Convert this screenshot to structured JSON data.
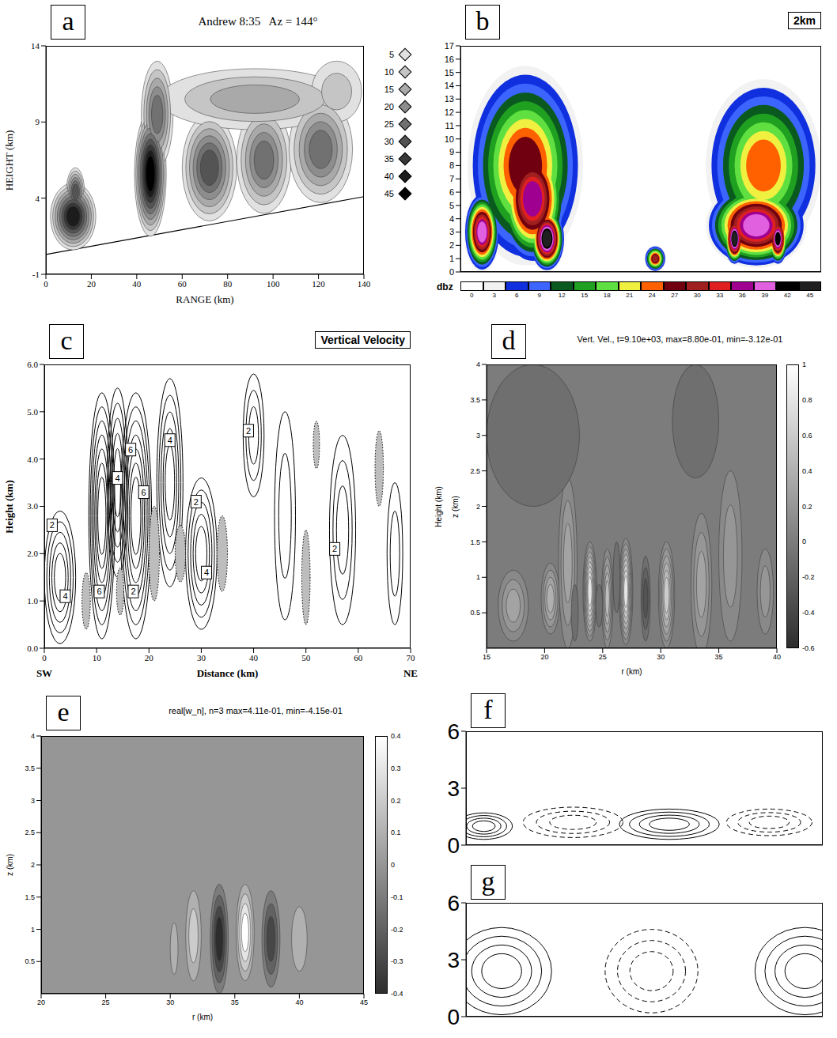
{
  "chart_data": [
    {
      "panel": "a",
      "type": "filled_contour",
      "title": "Andrew 8:35   Az = 144°",
      "x_label": "RANGE (km)",
      "y_label": "HEIGHT (km)",
      "xlim": [
        0,
        140
      ],
      "xticks": [
        0,
        20,
        40,
        60,
        80,
        100,
        120,
        140
      ],
      "ylim": [
        -1,
        14
      ],
      "yticks": [
        -1,
        4,
        9,
        14
      ],
      "background": 0,
      "colorbar": {
        "ticks": [
          5,
          10,
          15,
          20,
          25,
          30,
          35,
          40,
          45
        ]
      },
      "blobs": [
        {
          "x": 12,
          "y": 2.8,
          "rx": 10,
          "ry": 2.2,
          "value": 40
        },
        {
          "x": 13,
          "y": 4.4,
          "rx": 4,
          "ry": 1.6,
          "value": 30
        },
        {
          "x": 46,
          "y": 5.6,
          "rx": 7,
          "ry": 4.1,
          "value": 45
        },
        {
          "x": 49,
          "y": 9.5,
          "rx": 7,
          "ry": 3.5,
          "value": 25
        },
        {
          "x": 72,
          "y": 6,
          "rx": 12,
          "ry": 3.5,
          "value": 30
        },
        {
          "x": 96,
          "y": 6.5,
          "rx": 12,
          "ry": 3.5,
          "value": 28
        },
        {
          "x": 121,
          "y": 7.2,
          "rx": 14,
          "ry": 3.5,
          "value": 28
        },
        {
          "x": 92,
          "y": 10.5,
          "rx": 42,
          "ry": 2,
          "value": 15
        },
        {
          "x": 128,
          "y": 11,
          "rx": 11,
          "ry": 2,
          "value": 10
        }
      ],
      "boundary": {
        "x": [
          0,
          140
        ],
        "y": [
          0.3,
          4.1
        ]
      }
    },
    {
      "panel": "b",
      "type": "filled_contour",
      "corner_label": "2km",
      "tick_labels": "y",
      "xlim": [
        0,
        100
      ],
      "ylim": [
        0,
        17
      ],
      "yticks": [
        0,
        1,
        2,
        3,
        4,
        5,
        6,
        7,
        8,
        9,
        10,
        11,
        12,
        13,
        14,
        15,
        16,
        17
      ],
      "background": 0,
      "colorbar": {
        "title": "dbz",
        "ticks": [
          0,
          3,
          6,
          9,
          12,
          15,
          18,
          21,
          24,
          27,
          30,
          33,
          36,
          39,
          42,
          45
        ],
        "colors": [
          "#ffffff",
          "#f2f2f2",
          "#1030e0",
          "#3c64ff",
          "#0a5a20",
          "#20a020",
          "#60e040",
          "#f0f040",
          "#ff6000",
          "#700010",
          "#a02020",
          "#e02020",
          "#a00090",
          "#e060e0",
          "#000000",
          "#202020"
        ]
      },
      "blobs": [
        {
          "x": 18,
          "y": 8,
          "rx": 16,
          "ry": 7.5,
          "value": 27
        },
        {
          "x": 20,
          "y": 5.5,
          "rx": 10,
          "ry": 5,
          "value": 36
        },
        {
          "x": 24,
          "y": 2.5,
          "rx": 5,
          "ry": 2.5,
          "value": 45
        },
        {
          "x": 6,
          "y": 3,
          "rx": 5,
          "ry": 3,
          "value": 39
        },
        {
          "x": 84,
          "y": 8,
          "rx": 16,
          "ry": 6.5,
          "value": 24
        },
        {
          "x": 82,
          "y": 3.5,
          "rx": 14,
          "ry": 3.2,
          "value": 39
        },
        {
          "x": 76,
          "y": 2.5,
          "rx": 3,
          "ry": 2,
          "value": 45
        },
        {
          "x": 88,
          "y": 2.5,
          "rx": 3,
          "ry": 2,
          "value": 42
        },
        {
          "x": 54,
          "y": 1,
          "rx": 3,
          "ry": 1,
          "value": 30
        }
      ]
    },
    {
      "panel": "c",
      "type": "contour",
      "corner_label": "Vertical Velocity",
      "x_label": "Distance (km)",
      "y_label": "Height (km)",
      "left_label": "SW",
      "right_label": "NE",
      "xlim": [
        0,
        70
      ],
      "xticks": [
        0,
        10,
        20,
        30,
        40,
        50,
        60,
        70
      ],
      "ylim": [
        0,
        6
      ],
      "yticks": [
        {
          "value": 0,
          "label": "0.0"
        },
        {
          "value": 1,
          "label": "1.0"
        },
        {
          "value": 2,
          "label": "2.0"
        },
        {
          "value": 3,
          "label": "3.0"
        },
        {
          "value": 4,
          "label": "4.0"
        },
        {
          "value": 5,
          "label": "5.0"
        },
        {
          "value": 6,
          "label": "6.0"
        }
      ],
      "background": 0,
      "levels": [
        -1,
        1,
        2,
        3,
        4,
        5,
        6,
        7
      ],
      "line_style": "dotted",
      "blobs": [
        {
          "x": 3,
          "y": 1.5,
          "rx": 3,
          "ry": 1.4,
          "value": 5
        },
        {
          "x": 11,
          "y": 2.8,
          "rx": 2.5,
          "ry": 2.6,
          "value": 7
        },
        {
          "x": 17.5,
          "y": 2.8,
          "rx": 3,
          "ry": 2.6,
          "value": 7
        },
        {
          "x": 14,
          "y": 3.5,
          "rx": 2,
          "ry": 2,
          "value": 5
        },
        {
          "x": 24,
          "y": 3.5,
          "rx": 2.5,
          "ry": 2.2,
          "value": 5
        },
        {
          "x": 30,
          "y": 2,
          "rx": 3,
          "ry": 1.6,
          "value": 5
        },
        {
          "x": 40,
          "y": 4.5,
          "rx": 2,
          "ry": 1.3,
          "value": 3
        },
        {
          "x": 57,
          "y": 2.5,
          "rx": 2.5,
          "ry": 2,
          "value": 3
        },
        {
          "x": 46,
          "y": 2.8,
          "rx": 2,
          "ry": 2.2,
          "value": 2
        },
        {
          "x": 67,
          "y": 2,
          "rx": 1.5,
          "ry": 1.5,
          "value": 2
        },
        {
          "x": 8,
          "y": 1,
          "rx": 0.8,
          "ry": 0.6,
          "value": -1
        },
        {
          "x": 21,
          "y": 2,
          "rx": 1,
          "ry": 1,
          "value": -1
        },
        {
          "x": 26,
          "y": 2,
          "rx": 1,
          "ry": 0.6,
          "value": -1
        },
        {
          "x": 34,
          "y": 2,
          "rx": 1,
          "ry": 0.8,
          "value": -1
        },
        {
          "x": 50,
          "y": 1.5,
          "rx": 0.8,
          "ry": 1,
          "value": -1
        },
        {
          "x": 64,
          "y": 3.8,
          "rx": 0.8,
          "ry": 0.8,
          "value": -1
        },
        {
          "x": 14.5,
          "y": 1.2,
          "rx": 0.7,
          "ry": 0.5,
          "value": -1
        },
        {
          "x": 52,
          "y": 4.3,
          "rx": 0.6,
          "ry": 0.5,
          "value": -1
        }
      ],
      "contour_labels": [
        {
          "x": 1.5,
          "y": 2.6,
          "value": 2
        },
        {
          "x": 4,
          "y": 1.1,
          "value": 4
        },
        {
          "x": 10.5,
          "y": 1.2,
          "value": 6
        },
        {
          "x": 14,
          "y": 3.6,
          "value": 4
        },
        {
          "x": 16.5,
          "y": 4.2,
          "value": 6
        },
        {
          "x": 19,
          "y": 3.3,
          "value": 6
        },
        {
          "x": 17,
          "y": 1.2,
          "value": 2
        },
        {
          "x": 24,
          "y": 4.4,
          "value": 4
        },
        {
          "x": 29,
          "y": 3.1,
          "value": 2
        },
        {
          "x": 31,
          "y": 1.6,
          "value": 4
        },
        {
          "x": 39,
          "y": 4.6,
          "value": 2
        },
        {
          "x": 55.5,
          "y": 2.1,
          "value": 2
        }
      ]
    },
    {
      "panel": "d",
      "type": "filled_contour",
      "title": "Vert. Vel., t=9.10e+03, max=8.80e-01, min=-3.12e-01",
      "x_label": "r (km)",
      "y_label": "z (km)",
      "side_label": "Height (km)",
      "xlim": [
        15,
        40
      ],
      "xticks": [
        15,
        20,
        25,
        30,
        35,
        40
      ],
      "ylim": [
        0,
        4
      ],
      "yticks": [
        0.5,
        1,
        1.5,
        2,
        2.5,
        3,
        3.5,
        4
      ],
      "background": 0,
      "levels": [
        -0.3,
        -0.2,
        -0.1,
        0.1,
        0.2,
        0.3,
        0.4,
        0.5,
        0.6,
        0.7,
        0.8
      ],
      "colorbar": {
        "range": [
          -0.6,
          1
        ],
        "ticks": [
          1,
          0.8,
          0.6,
          0.4,
          0.2,
          0,
          -0.2,
          -0.4,
          -0.6
        ]
      },
      "blobs": [
        {
          "x": 19,
          "y": 3,
          "rx": 4,
          "ry": 1,
          "value": -0.1
        },
        {
          "x": 33,
          "y": 3.2,
          "rx": 2,
          "ry": 0.8,
          "value": -0.1
        },
        {
          "x": 17.3,
          "y": 0.6,
          "rx": 1.3,
          "ry": 0.5,
          "value": 0.3
        },
        {
          "x": 20.5,
          "y": 0.7,
          "rx": 0.8,
          "ry": 0.5,
          "value": 0.4
        },
        {
          "x": 22,
          "y": 1.2,
          "rx": 0.8,
          "ry": 1.2,
          "value": 0.3
        },
        {
          "x": 23.9,
          "y": 0.8,
          "rx": 0.6,
          "ry": 0.7,
          "value": 0.8
        },
        {
          "x": 25.4,
          "y": 0.7,
          "rx": 0.5,
          "ry": 0.7,
          "value": 0.5
        },
        {
          "x": 27,
          "y": 0.8,
          "rx": 0.6,
          "ry": 0.75,
          "value": 0.88
        },
        {
          "x": 30.5,
          "y": 0.75,
          "rx": 0.7,
          "ry": 0.75,
          "value": 0.6
        },
        {
          "x": 33.5,
          "y": 0.9,
          "rx": 0.9,
          "ry": 1,
          "value": 0.3
        },
        {
          "x": 36,
          "y": 1.3,
          "rx": 1,
          "ry": 1.2,
          "value": 0.2
        },
        {
          "x": 39,
          "y": 0.8,
          "rx": 0.7,
          "ry": 0.6,
          "value": 0.2
        },
        {
          "x": 24.7,
          "y": 0.6,
          "rx": 0.3,
          "ry": 0.3,
          "value": -0.1
        },
        {
          "x": 28.7,
          "y": 0.7,
          "rx": 0.4,
          "ry": 0.6,
          "value": -0.31
        },
        {
          "x": 26.2,
          "y": 1,
          "rx": 0.3,
          "ry": 0.5,
          "value": -0.1
        },
        {
          "x": 22.6,
          "y": 0.5,
          "rx": 0.3,
          "ry": 0.4,
          "value": -0.1
        }
      ]
    },
    {
      "panel": "e",
      "type": "filled_contour",
      "title": "real[w_n], n=3 max=4.11e-01, min=-4.15e-01",
      "x_label": "r (km)",
      "y_label": "z (km)",
      "xlim": [
        20,
        45
      ],
      "xticks": [
        20,
        25,
        30,
        35,
        40,
        45
      ],
      "ylim": [
        0,
        4
      ],
      "yticks": [
        0.5,
        1,
        1.5,
        2,
        2.5,
        3,
        3.5,
        4
      ],
      "background": 0,
      "levels": [
        -0.4,
        -0.3,
        -0.2,
        -0.1,
        0.1,
        0.2,
        0.3,
        0.4
      ],
      "colorbar": {
        "range": [
          -0.4,
          0.4
        ],
        "ticks": [
          0.4,
          0.3,
          0.2,
          0.1,
          0,
          -0.1,
          -0.2,
          -0.3,
          -0.4
        ]
      },
      "blobs": [
        {
          "x": 30.3,
          "y": 0.7,
          "rx": 0.3,
          "ry": 0.4,
          "value": 0.1
        },
        {
          "x": 31.8,
          "y": 0.9,
          "rx": 0.6,
          "ry": 0.7,
          "value": 0.2
        },
        {
          "x": 33.8,
          "y": 0.85,
          "rx": 0.7,
          "ry": 0.85,
          "value": -0.41
        },
        {
          "x": 35.8,
          "y": 0.95,
          "rx": 0.7,
          "ry": 0.75,
          "value": 0.41
        },
        {
          "x": 37.8,
          "y": 0.85,
          "rx": 0.7,
          "ry": 0.75,
          "value": -0.3
        },
        {
          "x": 40,
          "y": 0.85,
          "rx": 0.6,
          "ry": 0.5,
          "value": 0.1
        }
      ]
    },
    {
      "panel": "f",
      "type": "contour",
      "tick_labels": "y",
      "xlim": [
        0,
        100
      ],
      "ylim": [
        0,
        6
      ],
      "yticks": [
        0,
        3,
        6
      ],
      "background": 0,
      "levels": [
        -3,
        -2,
        -1,
        1,
        2,
        3,
        4
      ],
      "line_style": "dashed",
      "blobs": [
        {
          "x": 5,
          "y": 1,
          "rx": 8,
          "ry": 0.7,
          "value": 4
        },
        {
          "x": 57,
          "y": 1.1,
          "rx": 14,
          "ry": 0.8,
          "value": 4
        },
        {
          "x": 30,
          "y": 1.2,
          "rx": 14,
          "ry": 0.8,
          "value": -3
        },
        {
          "x": 85,
          "y": 1.2,
          "rx": 12,
          "ry": 0.7,
          "value": -3
        }
      ]
    },
    {
      "panel": "g",
      "type": "contour",
      "tick_labels": "y",
      "xlim": [
        0,
        100
      ],
      "ylim": [
        0,
        6
      ],
      "yticks": [
        0,
        3,
        6
      ],
      "background": 0,
      "levels": [
        -3,
        -2,
        -1,
        1,
        2,
        3,
        4
      ],
      "line_style": "dashed",
      "blobs": [
        {
          "x": 10,
          "y": 2.4,
          "rx": 14,
          "ry": 2.3,
          "value": 4
        },
        {
          "x": 95,
          "y": 2.4,
          "rx": 14,
          "ry": 2.3,
          "value": 4
        },
        {
          "x": 52,
          "y": 2.4,
          "rx": 13,
          "ry": 2.2,
          "value": -3
        }
      ]
    }
  ]
}
